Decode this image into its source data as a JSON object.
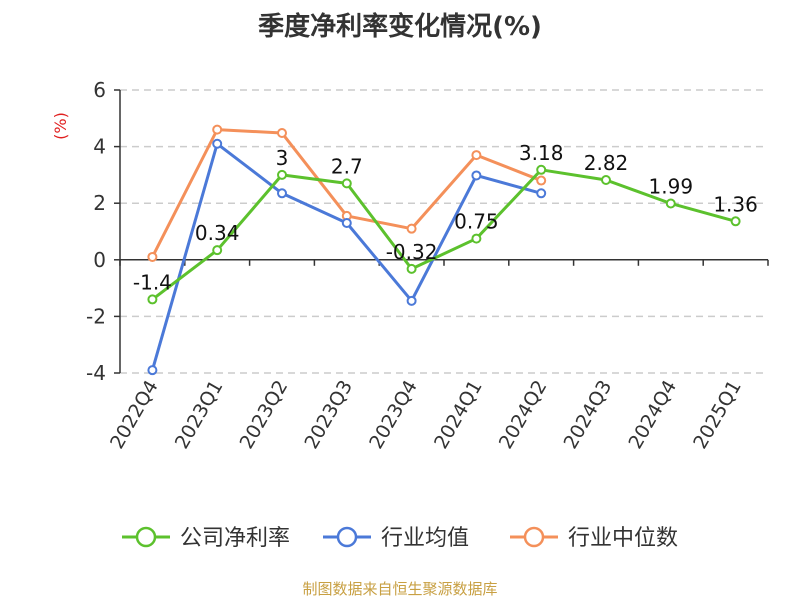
{
  "title": "季度净利率变化情况(%)",
  "source": "制图数据来自恒生聚源数据库",
  "chart_data": {
    "type": "line",
    "title": "季度净利率变化情况(%)",
    "ylabel": "(%)",
    "ylim": [
      -4,
      6
    ],
    "yticks": [
      -4,
      -2,
      0,
      2,
      4,
      6
    ],
    "grid": true,
    "legend_position": "bottom",
    "categories": [
      "2022Q4",
      "2023Q1",
      "2023Q2",
      "2023Q3",
      "2023Q4",
      "2024Q1",
      "2024Q2",
      "2024Q3",
      "2024Q4",
      "2025Q1"
    ],
    "series": [
      {
        "name": "公司净利率",
        "color": "#5cc12d",
        "values": [
          -1.4,
          0.34,
          3,
          2.7,
          -0.32,
          0.75,
          3.18,
          2.82,
          1.99,
          1.36
        ],
        "labels": [
          "-1.4",
          "0.34",
          "3",
          "2.7",
          "-0.32",
          "0.75",
          "3.18",
          "2.82",
          "1.99",
          "1.36"
        ],
        "show_labels": true
      },
      {
        "name": "行业均值",
        "color": "#4b79d8",
        "values": [
          -3.9,
          4.1,
          2.35,
          1.3,
          -1.45,
          2.98,
          2.35,
          null,
          null,
          null
        ],
        "show_labels": false
      },
      {
        "name": "行业中位数",
        "color": "#f4905a",
        "values": [
          0.1,
          4.6,
          4.48,
          1.55,
          1.1,
          3.7,
          2.8,
          null,
          null,
          null
        ],
        "show_labels": false
      }
    ]
  }
}
